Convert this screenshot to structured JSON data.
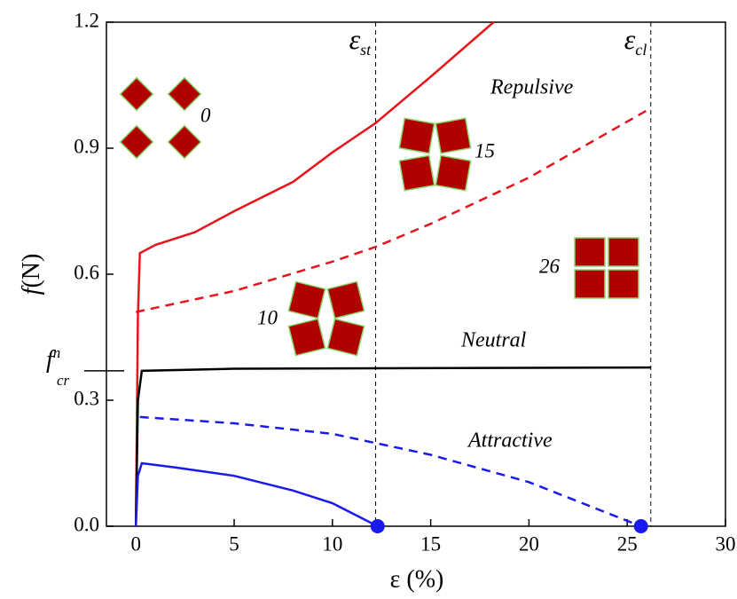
{
  "chart_data": {
    "type": "line",
    "xlabel": "ε (%)",
    "ylabel_var": "f",
    "ylabel_unit": "(N)",
    "xlim": [
      -1.5,
      30
    ],
    "ylim": [
      0,
      1.2
    ],
    "xticks": [
      0,
      5,
      10,
      15,
      20,
      25,
      30
    ],
    "yticks": [
      {
        "value": 0,
        "label": "0.0"
      },
      0.3,
      0.6,
      0.9,
      1.2
    ],
    "series": [
      {
        "color": "#e8141c",
        "dash": false,
        "x": [
          0,
          0.1,
          0.2,
          1,
          3,
          5,
          8,
          10,
          12.2,
          15,
          18.2
        ],
        "values": [
          0,
          0.5,
          0.65,
          0.67,
          0.7,
          0.75,
          0.82,
          0.89,
          0.96,
          1.07,
          1.2
        ]
      },
      {
        "color": "#e8141c",
        "dash": true,
        "x": [
          0,
          2,
          5,
          10,
          12.2,
          15,
          20,
          26
        ],
        "values": [
          0.51,
          0.53,
          0.56,
          0.63,
          0.665,
          0.72,
          0.83,
          0.99
        ]
      },
      {
        "color": "#000000",
        "dash": false,
        "x": [
          0,
          0.1,
          0.3,
          5,
          26.2
        ],
        "values": [
          0,
          0.3,
          0.37,
          0.375,
          0.378
        ]
      },
      {
        "color": "#1a1aee",
        "dash": true,
        "end_marker": true,
        "x": [
          0.2,
          5,
          10,
          15,
          20,
          25.7
        ],
        "values": [
          0.26,
          0.245,
          0.22,
          0.17,
          0.105,
          0
        ]
      },
      {
        "color": "#1a1aee",
        "dash": false,
        "end_marker": true,
        "x": [
          0,
          0.1,
          0.3,
          2,
          5,
          8,
          10,
          12.3
        ],
        "values": [
          0,
          0.12,
          0.15,
          0.14,
          0.12,
          0.085,
          0.055,
          0
        ]
      }
    ],
    "vlines": [
      {
        "x": 12.2,
        "symbol": "ε",
        "sub": "st"
      },
      {
        "x": 26.2,
        "symbol": "ε",
        "sub": "cl"
      }
    ],
    "hmark": {
      "y": 0.37,
      "symbol": "f",
      "sup": "n",
      "sub": "cr"
    },
    "annotations": {
      "repulsive": "Repulsive",
      "neutral": "Neutral",
      "attractive": "Attractive",
      "i0": "0",
      "i15": "15",
      "i10": "10",
      "i26": "26"
    }
  }
}
